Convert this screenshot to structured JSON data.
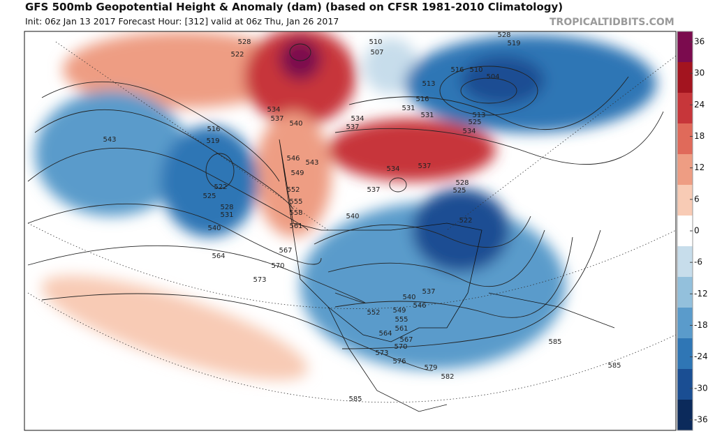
{
  "header": {
    "title": "GFS 500mb Geopotential Height & Anomaly (dam) (based on CFSR 1981-2010 Climatology)",
    "subtitle": "Init: 06z Jan 13 2017   Forecast Hour: [312]   valid at 06z Thu, Jan 26 2017",
    "watermark": "TROPICALTIDBITS.COM"
  },
  "colorbar": {
    "clim": [
      -38,
      38
    ],
    "ticks": [
      36,
      30,
      24,
      18,
      12,
      6,
      0,
      -6,
      -12,
      -18,
      -24,
      -30,
      -36
    ],
    "colors": [
      "#7b0b4e",
      "#a3141f",
      "#c7363a",
      "#e06a5a",
      "#ee9d83",
      "#f8cbb5",
      "#ffffff",
      "#c7ddeb",
      "#93c0dc",
      "#5a9bcb",
      "#2f76b5",
      "#1a4e93",
      "#0b2a5b"
    ]
  },
  "contour_labels": [
    528,
    522,
    510,
    507,
    528,
    519,
    516,
    510,
    504,
    513,
    513,
    516,
    534,
    537,
    540,
    534,
    537,
    531,
    525,
    534,
    546,
    543,
    549,
    552,
    555,
    558,
    561,
    531,
    537,
    528,
    525,
    522,
    540,
    534,
    537,
    543,
    516,
    519,
    522,
    525,
    528,
    531,
    540,
    564,
    567,
    570,
    573,
    540,
    537,
    546,
    552,
    549,
    555,
    561,
    564,
    567,
    570,
    573,
    576,
    579,
    582,
    585,
    585,
    585
  ]
}
